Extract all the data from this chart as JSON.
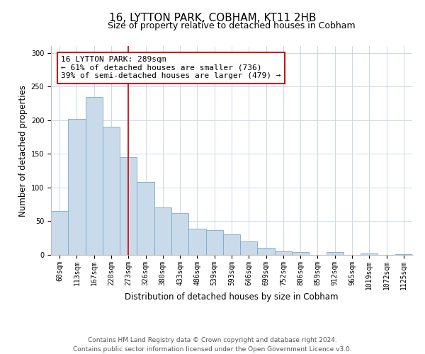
{
  "title": "16, LYTTON PARK, COBHAM, KT11 2HB",
  "subtitle": "Size of property relative to detached houses in Cobham",
  "xlabel": "Distribution of detached houses by size in Cobham",
  "ylabel": "Number of detached properties",
  "categories": [
    "60sqm",
    "113sqm",
    "167sqm",
    "220sqm",
    "273sqm",
    "326sqm",
    "380sqm",
    "433sqm",
    "486sqm",
    "539sqm",
    "593sqm",
    "646sqm",
    "699sqm",
    "752sqm",
    "806sqm",
    "859sqm",
    "912sqm",
    "965sqm",
    "1019sqm",
    "1072sqm",
    "1125sqm"
  ],
  "values": [
    65,
    202,
    234,
    190,
    145,
    108,
    70,
    62,
    39,
    37,
    30,
    20,
    10,
    5,
    4,
    0,
    4,
    0,
    2,
    0,
    1
  ],
  "bar_color": "#c9daea",
  "bar_edge_color": "#7aaac8",
  "vline_color": "#cc0000",
  "annotation_text": "16 LYTTON PARK: 289sqm\n← 61% of detached houses are smaller (736)\n39% of semi-detached houses are larger (479) →",
  "annotation_box_edge_color": "#cc0000",
  "ylim": [
    0,
    310
  ],
  "yticks": [
    0,
    50,
    100,
    150,
    200,
    250,
    300
  ],
  "footer_line1": "Contains HM Land Registry data © Crown copyright and database right 2024.",
  "footer_line2": "Contains public sector information licensed under the Open Government Licence v3.0.",
  "title_fontsize": 11,
  "subtitle_fontsize": 9,
  "axis_label_fontsize": 8.5,
  "tick_fontsize": 7,
  "annotation_fontsize": 8,
  "footer_fontsize": 6.5
}
